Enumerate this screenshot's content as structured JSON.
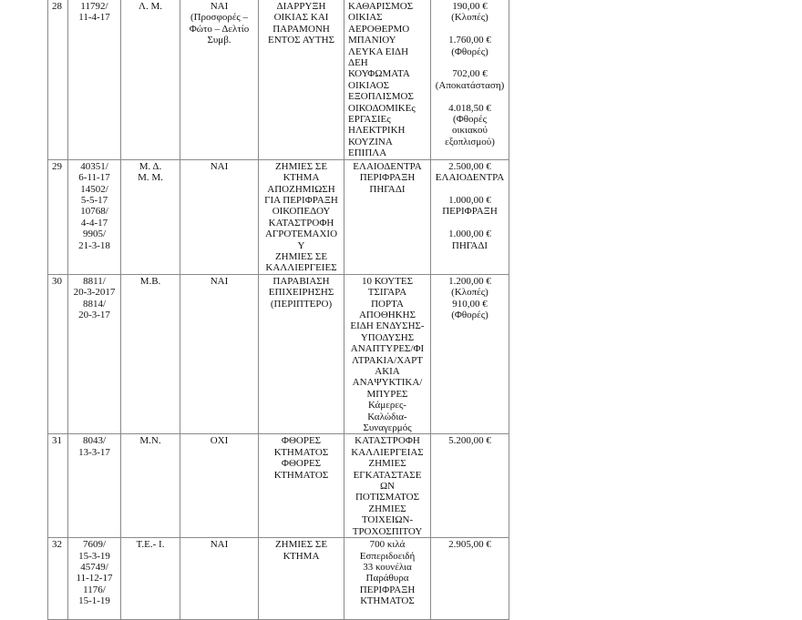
{
  "rows": [
    {
      "no": "28",
      "protocol": "11792/\n11-4-17",
      "name": "Λ. Μ.",
      "evidence": "ΝΑΙ\n(Προσφορές –\nΦώτο – Δελτίο\nΣυμβ.",
      "damage": "ΔΙΑΡΡΥΞΗ\nΟΙΚΙΑΣ ΚΑΙ\nΠΑΡΑΜΟΝΗ\nΕΝΤΟΣ ΑΥΤΗΣ",
      "items": "ΚΑΘΑΡΙΣΜΟΣ\nΟΙΚΙΑΣ\nΑΕΡΟΘΕΡΜΟ\nΜΠΑΝΙΟΥ\nΛΕΥΚΑ ΕΙΔΗ\nΔΕΗ\nΚΟΥΦΩΜΑΤΑ\nΟΙΚΙΑΟΣ\nΕΞΟΠΛΙΣΜΟΣ\nΟΙΚΟΔΟΜΙΚΕς\nΕΡΓΑΣΙΕς\nΗΛΕΚΤΡΙΚΗ\nΚΟΥΖΙΝΑ\nΕΠΙΠΛΑ",
      "amount": "190,00 €\n(Κλοπές)\n\n1.760,00 €\n(Φθορές)\n\n702,00 €\n(Αποκατάσταση)\n\n4.018,50 €\n(Φθορές\nοικιακού\nεξοπλισμού)"
    },
    {
      "no": "29",
      "protocol": "40351/\n6-11-17\n14502/\n5-5-17\n10768/\n4-4-17\n9905/\n21-3-18",
      "name": "Μ. Δ.\nΜ. Μ.",
      "evidence": "ΝΑΙ",
      "damage": "ΖΗΜΙΕΣ ΣΕ\nΚΤΗΜΑ\nΑΠΟΖΗΜΙΩΣΗ\nΓΙΑ ΠΕΡΙΦΡΑΞΗ\nΟΙΚΟΠΕΔΟΥ\nΚΑΤΑΣΤΡΟΦΗ\nΑΓΡΟΤΕΜΑΧΙΟ\nΥ\nΖΗΜΙΕΣ ΣΕ\nΚΑΛΛΙΕΡΓΕΙΕΣ",
      "items": "ΕΛΑΙΟΔΕΝΤΡΑ\nΠΕΡΙΦΡΑΞΗ\nΠΗΓΑΔΙ",
      "amount": "2.500,00 €\nΕΛΑΙΟΔΕΝΤΡΑ\n\n1.000,00 €\nΠΕΡΙΦΡΑΞΗ\n\n1.000,00 €\nΠΗΓΑΔΙ"
    },
    {
      "no": "30",
      "protocol": "8811/\n20-3-2017\n8814/\n20-3-17",
      "name": "Μ.Β.",
      "evidence": "ΝΑΙ",
      "damage": "ΠΑΡΑΒΙΑΣΗ\nΕΠΙΧΕΙΡΗΣΗΣ\n(ΠΕΡΙΠΤΕΡΟ)",
      "items": "10 ΚΟΥΤΕΣ\nΤΣΙΓΑΡΑ\nΠΟΡΤΑ\nΑΠΟΘΗΚΗΣ\nΕΙΔΗ ΕΝΔΥΣΗΣ-\nΥΠΟΔΥΣΗΣ\nΑΝΑΠΤΥΡΕΣ/ΦΙ\nΛΤΡΑΚΙΑ/ΧΑΡΤ\nΑΚΙΑ\nΑΝΑΨΥΚΤΙΚΑ/\nΜΠΥΡΕΣ\nΚάμερες-\nΚαλώδια-\nΣυναγερμός",
      "amount": "1.200,00 €\n(Κλοπές)\n910,00 €\n(Φθορές)"
    },
    {
      "no": "31",
      "protocol": "8043/\n13-3-17",
      "name": "Μ.Ν.",
      "evidence": "ΟΧΙ",
      "damage": "ΦΘΟΡΕΣ\nΚΤΗΜΑΤΟΣ\nΦΘΟΡΕΣ\nΚΤΗΜΑΤΟΣ",
      "items": "ΚΑΤΑΣΤΡΟΦΗ\nΚΑΛΛΙΕΡΓΕΙΑΣ\nΖΗΜΙΕΣ\nΕΓΚΑΤΑΣΤΑΣΕ\nΩΝ\nΠΟΤΙΣΜΑΤΟΣ\nΖΗΜΙΕΣ\nΤΟΙΧΕΙΩΝ-\nΤΡΟΧΟΣΠΙΤΟΥ",
      "amount": "5.200,00 €"
    },
    {
      "no": "32",
      "protocol": "7609/\n15-3-19\n45749/\n11-12-17\n1176/\n15-1-19",
      "name": "Τ.Ε.- Ι.",
      "evidence": "ΝΑΙ",
      "damage": "ΖΗΜΙΕΣ ΣΕ\nΚΤΗΜΑ",
      "items": "700 κιλά\nΕσπεριδοειδή\n33 κουνέλια\nΠαράθυρα\nΠΕΡΙΦΡΑΞΗ\nΚΤΗΜΑΤΟΣ",
      "amount": "2.905,00 €"
    }
  ]
}
